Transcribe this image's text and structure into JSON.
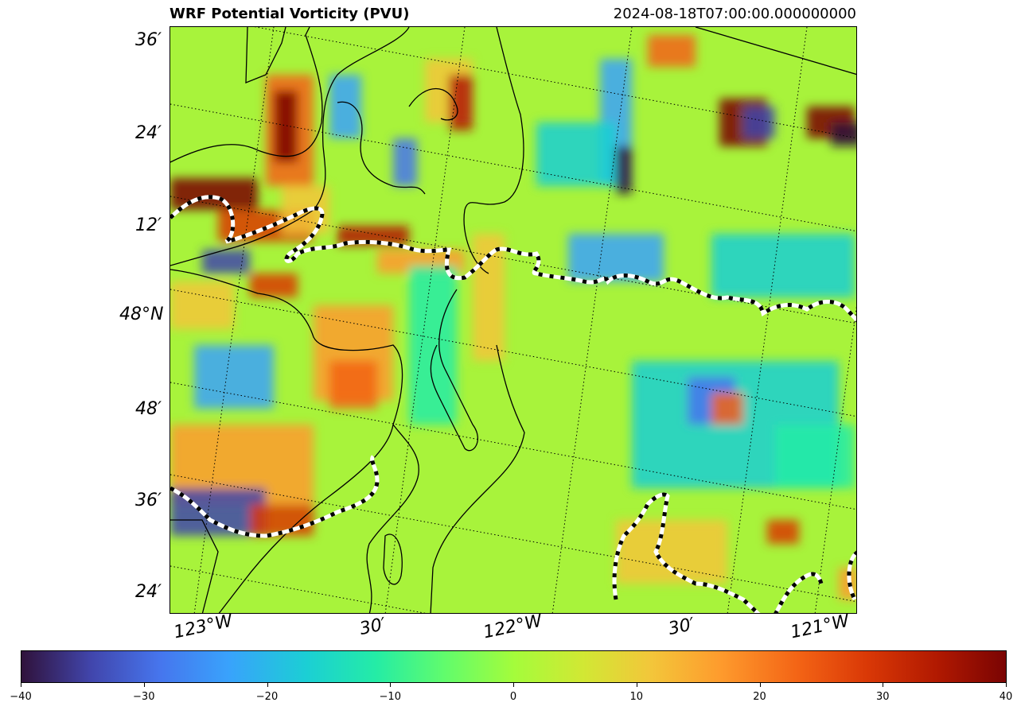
{
  "header": {
    "title": "WRF Potential Vorticity (PVU)",
    "timestamp": "2024-08-18T07:00:00.000000000"
  },
  "map": {
    "lat_labels": [
      "36′",
      "24′",
      "12′",
      "48°N",
      "48′",
      "36′",
      "24′"
    ],
    "lon_labels": [
      "123°W",
      "30′",
      "122°W",
      "30′",
      "121°W"
    ],
    "colormap": "turbo",
    "background_color": "#a8f33b",
    "coastline_color": "#000000",
    "border_line_style": "black-white-dashed",
    "gridline_style": "dotted"
  },
  "colorbar": {
    "min": -40,
    "max": 40,
    "tick_labels": [
      "−40",
      "−30",
      "−20",
      "−10",
      "0",
      "10",
      "20",
      "30",
      "40"
    ]
  }
}
